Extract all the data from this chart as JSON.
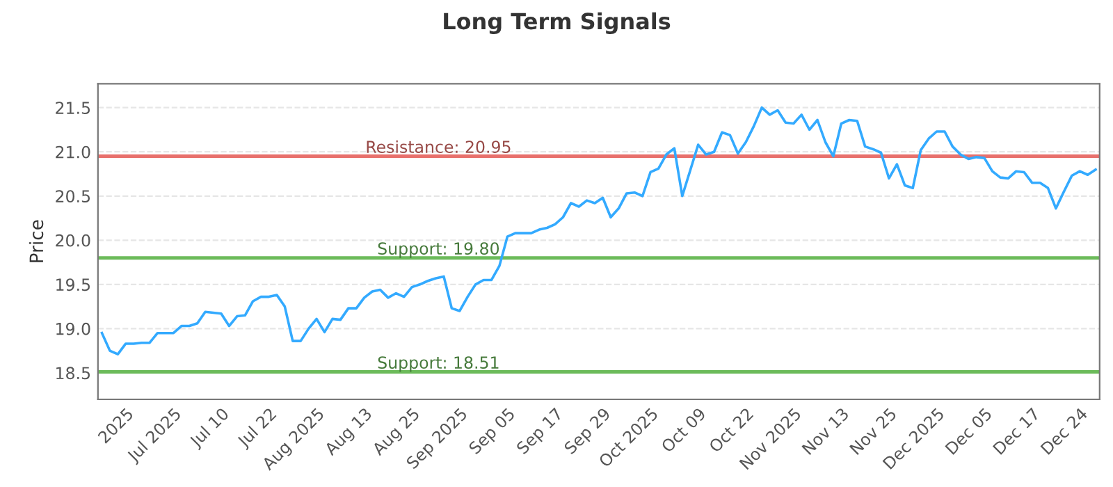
{
  "chart_data": {
    "type": "line",
    "title": "Long Term Signals",
    "ylabel": "Price",
    "categories": [
      null,
      null,
      null,
      "2025",
      null,
      null,
      null,
      null,
      null,
      "Jul 2025",
      null,
      null,
      null,
      null,
      null,
      "Jul 10",
      null,
      null,
      null,
      null,
      null,
      "Jul 22",
      null,
      null,
      null,
      null,
      null,
      "Aug 2025",
      null,
      null,
      null,
      null,
      null,
      "Aug 13",
      null,
      null,
      null,
      null,
      null,
      "Aug 25",
      null,
      null,
      null,
      null,
      null,
      "Sep 2025",
      null,
      null,
      null,
      null,
      null,
      "Sep 05",
      null,
      null,
      null,
      null,
      null,
      "Sep 17",
      null,
      null,
      null,
      null,
      null,
      "Sep 29",
      null,
      null,
      null,
      null,
      null,
      "Oct 2025",
      null,
      null,
      null,
      null,
      null,
      "Oct 09",
      null,
      null,
      null,
      null,
      null,
      "Oct 22",
      null,
      null,
      null,
      null,
      null,
      "Nov 2025",
      null,
      null,
      null,
      null,
      null,
      "Nov 13",
      null,
      null,
      null,
      null,
      null,
      "Nov 25",
      null,
      null,
      null,
      null,
      null,
      "Dec 2025",
      null,
      null,
      null,
      null,
      null,
      "Dec 05",
      null,
      null,
      null,
      null,
      null,
      "Dec 17",
      null,
      null,
      null,
      null,
      null,
      "Dec 24",
      null,
      null
    ],
    "series": [
      {
        "color": "#33aaff",
        "values": [
          18.95,
          18.75,
          18.71,
          18.83,
          18.83,
          18.84,
          18.84,
          18.95,
          18.95,
          18.95,
          19.03,
          19.03,
          19.06,
          19.19,
          19.18,
          19.17,
          19.03,
          19.14,
          19.15,
          19.31,
          19.36,
          19.36,
          19.38,
          19.25,
          18.86,
          18.86,
          19.0,
          19.11,
          18.96,
          19.11,
          19.1,
          19.23,
          19.23,
          19.35,
          19.42,
          19.44,
          19.35,
          19.4,
          19.36,
          19.47,
          19.5,
          19.54,
          19.57,
          19.59,
          19.23,
          19.2,
          19.36,
          19.5,
          19.55,
          19.55,
          19.71,
          20.04,
          20.08,
          20.08,
          20.08,
          20.12,
          20.14,
          20.18,
          20.26,
          20.42,
          20.38,
          20.45,
          20.42,
          20.48,
          20.26,
          20.36,
          20.53,
          20.54,
          20.5,
          20.77,
          20.81,
          20.97,
          21.04,
          20.5,
          20.79,
          21.08,
          20.97,
          21.0,
          21.22,
          21.19,
          20.98,
          21.11,
          21.29,
          21.5,
          21.42,
          21.47,
          21.33,
          21.32,
          21.42,
          21.25,
          21.36,
          21.11,
          20.95,
          21.32,
          21.36,
          21.35,
          21.06,
          21.03,
          20.99,
          20.7,
          20.86,
          20.62,
          20.59,
          21.02,
          21.15,
          21.23,
          21.23,
          21.06,
          20.97,
          20.92,
          20.94,
          20.93,
          20.78,
          20.71,
          20.7,
          20.78,
          20.77,
          20.65,
          20.65,
          20.59,
          20.36,
          20.55,
          20.73,
          20.78,
          20.74,
          20.8
        ]
      }
    ],
    "ylim": [
      18.2,
      21.77
    ],
    "yticks": [
      18.5,
      {
        "value": 19,
        "label": "19.0"
      },
      19.5,
      {
        "value": 20,
        "label": "20.0"
      },
      20.5,
      {
        "value": 21,
        "label": "21.0"
      },
      21.5
    ],
    "ref_lines": [
      {
        "axis": "y",
        "value": 20.95,
        "label": "Resistance: 20.95",
        "color": "#e8706c"
      },
      {
        "axis": "y",
        "value": 19.8,
        "label": "Support: 19.80",
        "color": "#6cbb5a"
      },
      {
        "axis": "y",
        "value": 18.51,
        "label": "Support: 18.51",
        "color": "#6cbb5a"
      }
    ],
    "grid": "y",
    "legend": false,
    "marker": "none",
    "line_style": "solid"
  }
}
